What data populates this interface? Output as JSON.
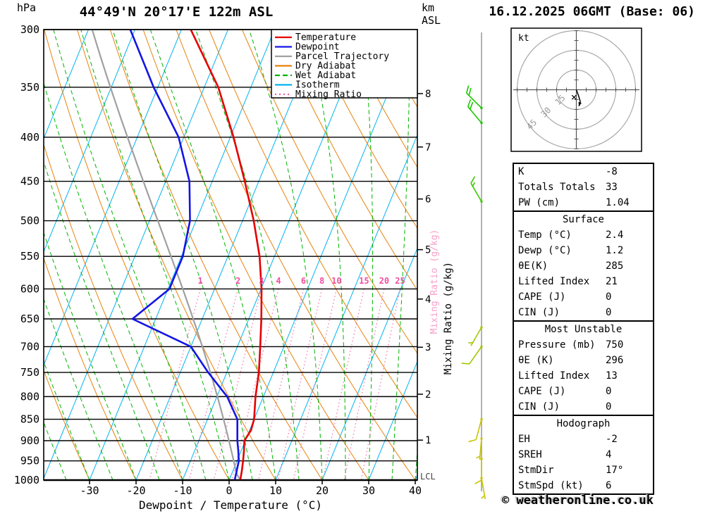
{
  "header": {
    "station_title": "44°49'N 20°17'E 122m ASL",
    "datetime_title": "16.12.2025 06GMT (Base: 06)",
    "pressure_axis_unit": "hPa",
    "altitude_axis_unit_line1": "km",
    "altitude_axis_unit_line2": "ASL"
  },
  "axes": {
    "pressure_ticks_hPa": [
      300,
      350,
      400,
      450,
      500,
      550,
      600,
      650,
      700,
      750,
      800,
      850,
      900,
      950,
      1000
    ],
    "temperature_ticks_c": [
      -30,
      -20,
      -10,
      0,
      10,
      20,
      30,
      40
    ],
    "altitude_ticks_km": [
      1,
      2,
      3,
      4,
      5,
      6,
      7,
      8
    ],
    "x_axis_label": "Dewpoint / Temperature (°C)",
    "mixing_ratio_axis_label": "Mixing Ratio (g/kg)",
    "lcl_label": "LCL"
  },
  "legend": [
    {
      "label": "Temperature",
      "color": "#e50000",
      "dash": ""
    },
    {
      "label": "Dewpoint",
      "color": "#1414e6",
      "dash": ""
    },
    {
      "label": "Parcel Trajectory",
      "color": "#a0a0a0",
      "dash": ""
    },
    {
      "label": "Dry Adiabat",
      "color": "#e8820c",
      "dash": ""
    },
    {
      "label": "Wet Adiabat",
      "color": "#00b400",
      "dash": "7,4"
    },
    {
      "label": "Isotherm",
      "color": "#00b4f0",
      "dash": ""
    },
    {
      "label": "Mixing Ratio",
      "color": "#f060a0",
      "dash": "2,4"
    }
  ],
  "chart_data": {
    "type": "line",
    "description": "Skew-T log-P thermodynamic sounding",
    "pressure_range_hPa": [
      300,
      1000
    ],
    "temperature_range_c": [
      -30,
      40
    ],
    "mixing_ratio_tick_values_gkg": [
      1,
      2,
      3,
      4,
      6,
      8,
      10,
      15,
      20,
      25
    ],
    "series": [
      {
        "name": "Temperature",
        "color": "#e50000",
        "points_p_t": [
          [
            1000,
            2.4
          ],
          [
            975,
            1.9
          ],
          [
            950,
            1.3
          ],
          [
            925,
            0.6
          ],
          [
            900,
            -0.2
          ],
          [
            875,
            0.3
          ],
          [
            850,
            0.0
          ],
          [
            800,
            -1.7
          ],
          [
            750,
            -3.1
          ],
          [
            700,
            -5.1
          ],
          [
            650,
            -7.3
          ],
          [
            600,
            -9.9
          ],
          [
            550,
            -13.2
          ],
          [
            500,
            -17.6
          ],
          [
            450,
            -23.0
          ],
          [
            400,
            -29.3
          ],
          [
            350,
            -37.0
          ],
          [
            300,
            -48.0
          ]
        ]
      },
      {
        "name": "Dewpoint",
        "color": "#1414e6",
        "points_p_t": [
          [
            1000,
            1.2
          ],
          [
            975,
            0.8
          ],
          [
            950,
            0.4
          ],
          [
            925,
            -0.6
          ],
          [
            900,
            -1.7
          ],
          [
            850,
            -3.6
          ],
          [
            800,
            -7.8
          ],
          [
            750,
            -14.0
          ],
          [
            700,
            -20.0
          ],
          [
            650,
            -35.0
          ],
          [
            600,
            -29.7
          ],
          [
            550,
            -29.7
          ],
          [
            500,
            -31.3
          ],
          [
            450,
            -34.9
          ],
          [
            400,
            -41.1
          ],
          [
            350,
            -50.9
          ],
          [
            300,
            -61.0
          ]
        ]
      },
      {
        "name": "Parcel Trajectory",
        "color": "#a0a0a0",
        "surface_temp_c": 2.4,
        "surface_dewp_c": 1.2
      }
    ],
    "wind_barbs": [
      {
        "pressure_hPa": 370,
        "speed_kt": 20,
        "direction_deg": 315,
        "color": "#18c800"
      },
      {
        "pressure_hPa": 385,
        "speed_kt": 20,
        "direction_deg": 320,
        "color": "#18c800"
      },
      {
        "pressure_hPa": 475,
        "speed_kt": 15,
        "direction_deg": 330,
        "color": "#3cc800"
      },
      {
        "pressure_hPa": 665,
        "speed_kt": 5,
        "direction_deg": 210,
        "color": "#a0c800"
      },
      {
        "pressure_hPa": 700,
        "speed_kt": 10,
        "direction_deg": 215,
        "color": "#a0c800"
      },
      {
        "pressure_hPa": 850,
        "speed_kt": 10,
        "direction_deg": 195,
        "color": "#c8c400"
      },
      {
        "pressure_hPa": 895,
        "speed_kt": 5,
        "direction_deg": 185,
        "color": "#c8c400"
      },
      {
        "pressure_hPa": 945,
        "speed_kt": 10,
        "direction_deg": 180,
        "color": "#c8c400"
      },
      {
        "pressure_hPa": 995,
        "speed_kt": 5,
        "direction_deg": 170,
        "color": "#c8c400"
      }
    ],
    "hodograph": {
      "unit": "kt",
      "rings_kt": [
        15,
        30,
        45
      ],
      "ring_labels": [
        "15",
        "30",
        "45"
      ],
      "trace_kt": [
        [
          0,
          0
        ],
        [
          1.5,
          -4
        ],
        [
          3,
          -9
        ],
        [
          2,
          -12.5
        ]
      ],
      "storm_dir_deg": 17,
      "storm_speed_kt": 6
    }
  },
  "table": {
    "sections": [
      {
        "header": null,
        "rows": [
          [
            "K",
            "-8"
          ],
          [
            "Totals Totals",
            "33"
          ],
          [
            "PW (cm)",
            "1.04"
          ]
        ]
      },
      {
        "header": "Surface",
        "rows": [
          [
            "Temp (°C)",
            "2.4"
          ],
          [
            "Dewp (°C)",
            "1.2"
          ],
          [
            "θE(K)",
            "285"
          ],
          [
            "Lifted Index",
            "21"
          ],
          [
            "CAPE (J)",
            "0"
          ],
          [
            "CIN (J)",
            "0"
          ]
        ]
      },
      {
        "header": "Most Unstable",
        "rows": [
          [
            "Pressure (mb)",
            "750"
          ],
          [
            "θE (K)",
            "296"
          ],
          [
            "Lifted Index",
            "13"
          ],
          [
            "CAPE (J)",
            "0"
          ],
          [
            "CIN (J)",
            "0"
          ]
        ]
      },
      {
        "header": "Hodograph",
        "rows": [
          [
            "EH",
            "-2"
          ],
          [
            "SREH",
            "4"
          ],
          [
            "StmDir",
            "17°"
          ],
          [
            "StmSpd (kt)",
            "6"
          ]
        ]
      }
    ]
  },
  "footer": {
    "copyright": "© weatheronline.co.uk"
  }
}
